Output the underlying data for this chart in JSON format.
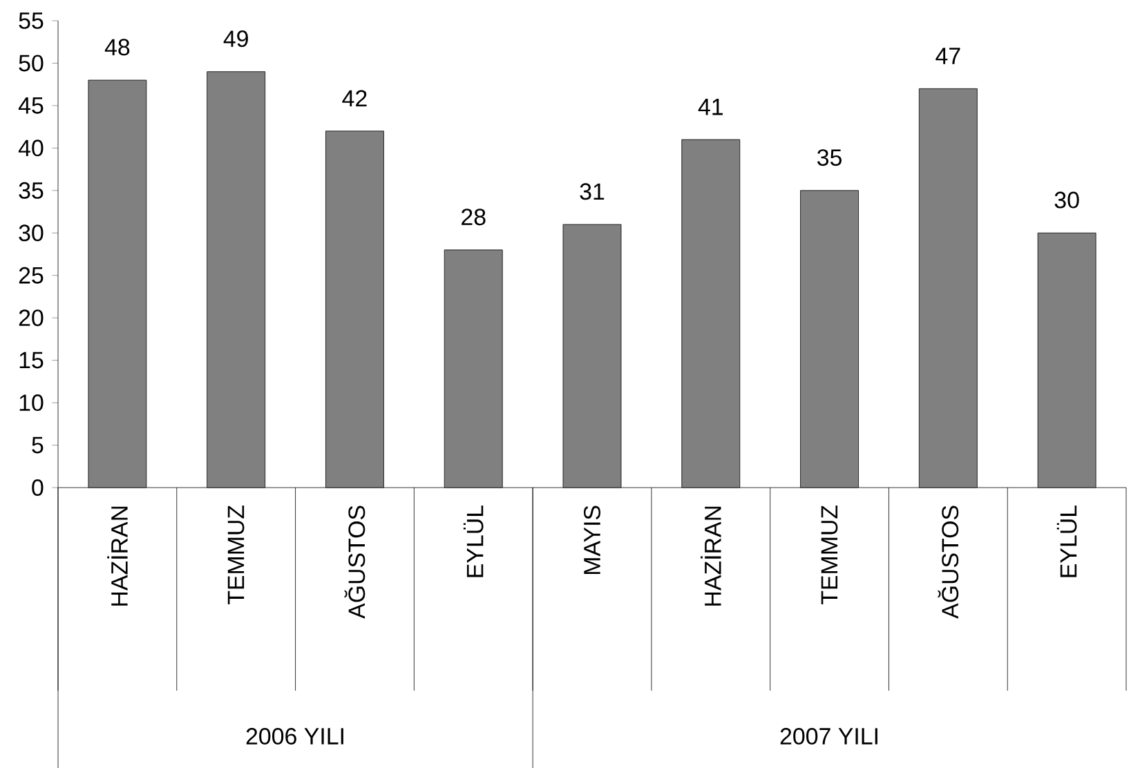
{
  "chart_data": {
    "type": "bar",
    "categories": [
      "HAZİRAN",
      "TEMMUZ",
      "AĞUSTOS",
      "EYLÜL",
      "MAYIS",
      "HAZİRAN",
      "TEMMUZ",
      "AĞUSTOS",
      "EYLÜL"
    ],
    "values": [
      48,
      49,
      42,
      28,
      31,
      41,
      35,
      47,
      30
    ],
    "color": "#808080",
    "data_labels": true,
    "ylim": [
      0,
      55
    ],
    "yticks": [
      0,
      5,
      10,
      15,
      20,
      25,
      30,
      35,
      40,
      45,
      50,
      55
    ],
    "grid": false,
    "annotations": [
      "2006 YILI",
      "2007 YILI"
    ]
  }
}
